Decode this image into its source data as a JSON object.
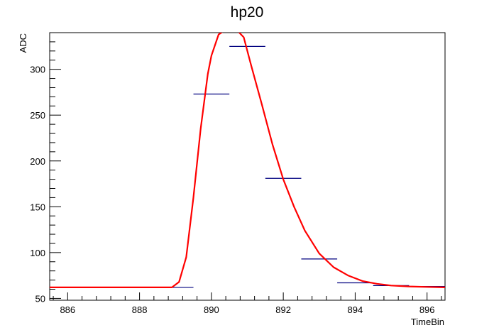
{
  "chart_data": {
    "type": "line",
    "title": "hp20",
    "xlabel": "TimeBin",
    "ylabel": "ADC",
    "xlim": [
      885.5,
      896.5
    ],
    "ylim": [
      48,
      340
    ],
    "x_ticks": [
      886,
      888,
      890,
      892,
      894,
      896
    ],
    "y_ticks": [
      50,
      100,
      150,
      200,
      250,
      300
    ],
    "grid": false,
    "legend": "none",
    "colors": {
      "histogram": "#00007f",
      "fit": "#ff0000",
      "frame": "#000000"
    },
    "series": [
      {
        "type": "histogram",
        "bin_width": 1,
        "x": [
          886,
          887,
          888,
          889,
          890,
          891,
          892,
          893,
          894,
          895,
          896
        ],
        "values": [
          62,
          62,
          62,
          62,
          273,
          325,
          181,
          93,
          67,
          64,
          63
        ]
      },
      {
        "type": "line",
        "x": [
          885.5,
          886,
          887,
          888,
          888.9,
          889.1,
          889.3,
          889.5,
          889.7,
          889.9,
          890.0,
          890.2,
          890.4,
          890.55,
          890.7,
          890.9,
          891.1,
          891.4,
          891.7,
          892.0,
          892.3,
          892.6,
          893.0,
          893.4,
          893.8,
          894.2,
          894.6,
          895.0,
          895.5,
          896.0,
          896.5
        ],
        "values": [
          62,
          62,
          62,
          62,
          62,
          68,
          95,
          160,
          235,
          295,
          315,
          338,
          343,
          343,
          343,
          335,
          305,
          262,
          218,
          180,
          150,
          124,
          99,
          84,
          75,
          69,
          66,
          64,
          63,
          62.5,
          62
        ]
      }
    ]
  }
}
